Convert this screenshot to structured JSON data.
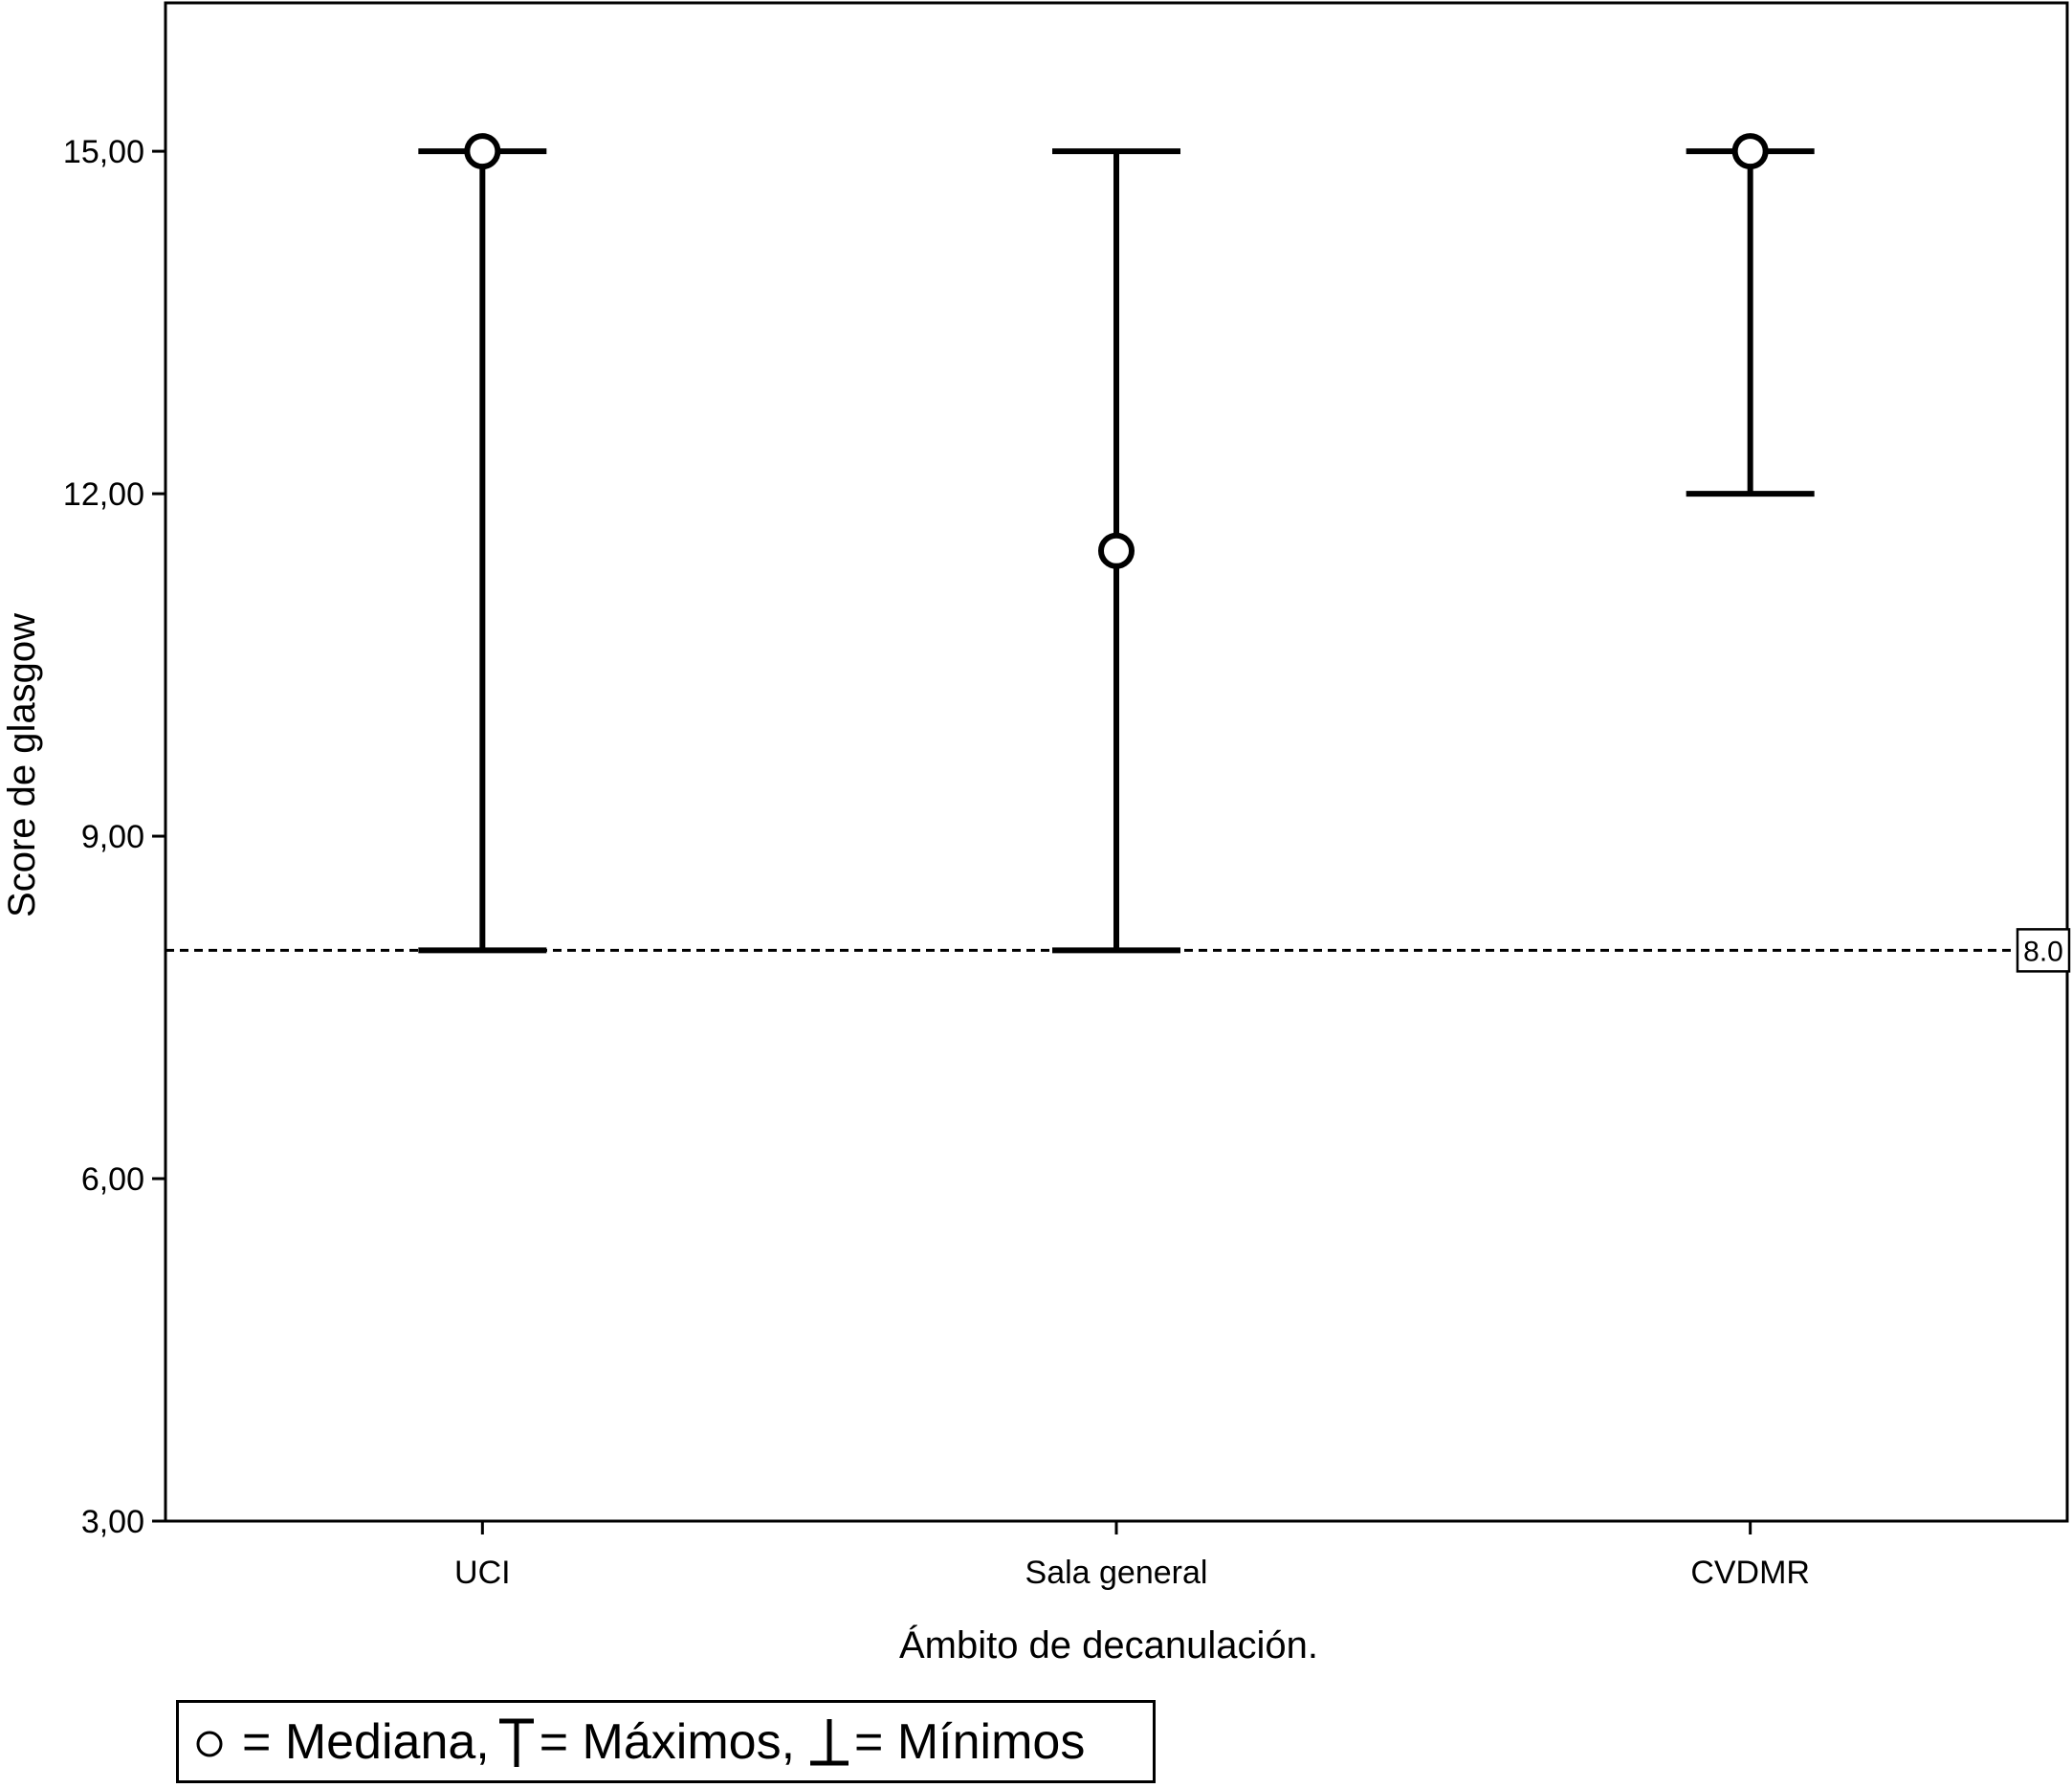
{
  "chart_data": {
    "type": "range-plot",
    "xlabel": "Ámbito de decanulación.",
    "ylabel": "Score de glasgow",
    "ylim": [
      3,
      16.3
    ],
    "yticks": [
      3,
      6,
      9,
      12,
      15
    ],
    "ytick_labels": [
      "3,00",
      "6,00",
      "9,00",
      "12,00",
      "15,00"
    ],
    "categories": [
      "UCI",
      "Sala general",
      "CVDMR"
    ],
    "series": [
      {
        "name": "Mediana",
        "values": [
          15,
          11.5,
          15
        ]
      },
      {
        "name": "Máximos",
        "values": [
          15,
          15,
          15
        ]
      },
      {
        "name": "Mínimos",
        "values": [
          8,
          8,
          12
        ]
      }
    ],
    "reference_line": {
      "value": 8.0,
      "label": "8.0",
      "style": "dashed"
    },
    "legend": {
      "position": "bottom-left",
      "text": "= Mediana, = Máximos, = Mínimos"
    },
    "legend_parts": {
      "median": "= Mediana,",
      "max": "= Máximos,",
      "min": "= Mínimos"
    },
    "grid": false
  }
}
